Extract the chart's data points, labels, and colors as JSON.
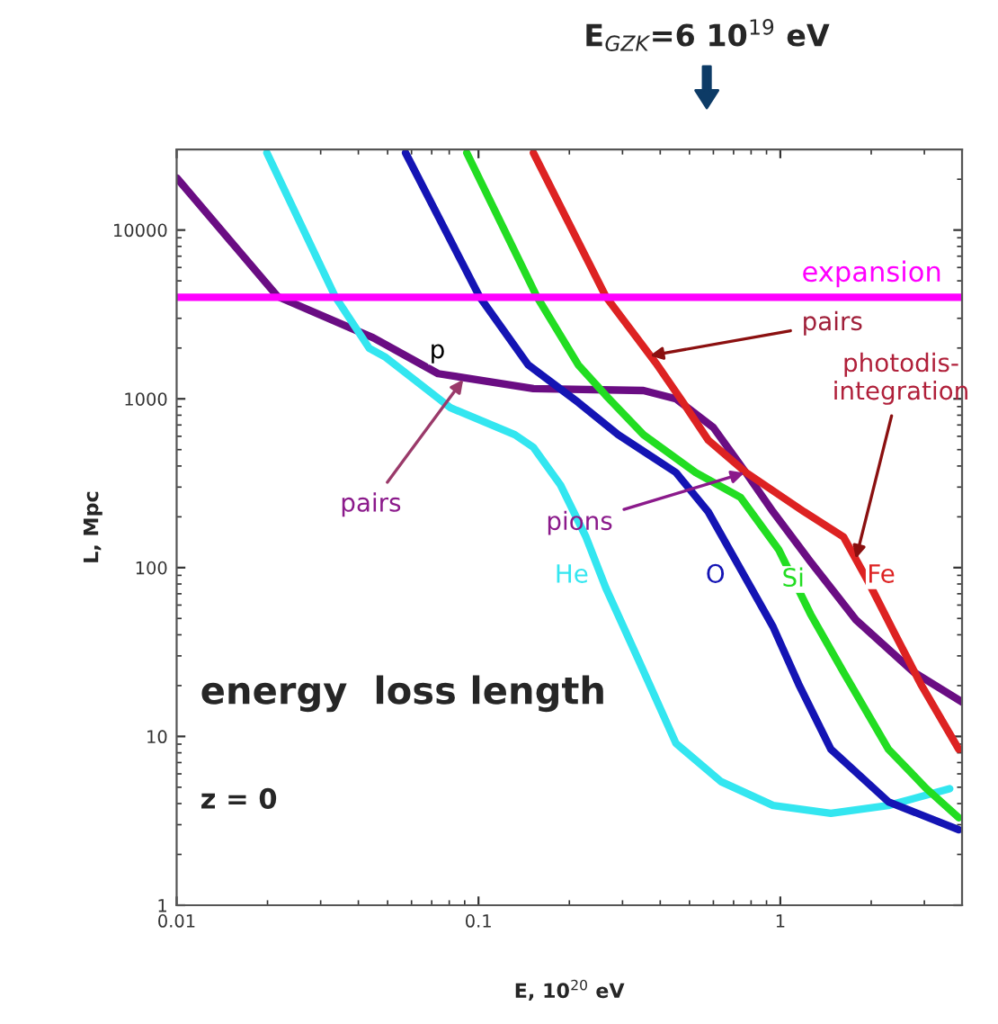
{
  "chart_data": {
    "type": "line",
    "xlabel": "E, 10$^{20}$ eV",
    "ylabel": "L, Mpc",
    "log": "xy",
    "xlim": [
      0.01,
      4
    ],
    "ylim": [
      1,
      30000
    ],
    "xticks": [
      0.01,
      0.1,
      1
    ],
    "yticks": [
      1,
      10,
      100,
      1000,
      10000
    ],
    "grid": false,
    "line_style": "solid",
    "marker": "none",
    "series": [
      {
        "name": "p",
        "color": "#6a0d83",
        "x": [
          0.01,
          0.0216,
          0.0448,
          0.0735,
          0.152,
          0.352,
          0.451,
          0.6,
          0.77,
          0.946,
          1.26,
          1.78,
          2.77,
          4
        ],
        "values": [
          20400,
          4040,
          2300,
          1410,
          1150,
          1120,
          1000,
          676,
          364,
          214,
          108,
          49,
          24,
          16
        ]
      },
      {
        "name": "He",
        "color": "#33e6f0",
        "x": [
          0.0199,
          0.0335,
          0.0435,
          0.0493,
          0.0808,
          0.132,
          0.152,
          0.187,
          0.227,
          0.264,
          0.338,
          0.451,
          0.636,
          0.946,
          1.47,
          2.28,
          3.64
        ],
        "values": [
          28700,
          4040,
          1990,
          1760,
          885,
          613,
          516,
          308,
          152,
          76,
          28.7,
          9.1,
          5.4,
          3.9,
          3.5,
          3.9,
          4.9
        ]
      },
      {
        "name": "O",
        "color": "#1414b4",
        "x": [
          0.0573,
          0.1007,
          0.146,
          0.214,
          0.29,
          0.451,
          0.577,
          0.739,
          0.946,
          1.15,
          1.47,
          2.28,
          3.9
        ],
        "values": [
          28700,
          4040,
          1590,
          953,
          613,
          366,
          214,
          97.6,
          44.6,
          20.4,
          8.4,
          4.1,
          2.8
        ]
      },
      {
        "name": "Si",
        "color": "#22dd22",
        "x": [
          0.0914,
          0.156,
          0.214,
          0.264,
          0.352,
          0.524,
          0.739,
          0.987,
          1.26,
          1.62,
          2.28,
          3.05,
          3.9
        ],
        "values": [
          28700,
          4040,
          1590,
          1050,
          613,
          366,
          260,
          128,
          52.9,
          24,
          8.4,
          4.9,
          3.3
        ]
      },
      {
        "name": "Fe",
        "color": "#dd2222",
        "x": [
          0.152,
          0.264,
          0.387,
          0.476,
          0.577,
          0.77,
          1.2,
          1.62,
          1.96,
          2.38,
          2.92,
          3.9
        ],
        "values": [
          28700,
          4040,
          1630,
          953,
          569,
          366,
          214,
          152,
          82,
          41.4,
          20.4,
          8.4
        ]
      }
    ],
    "ref_lines": [
      {
        "axis": "y",
        "value": 4000,
        "label": "expansion",
        "color": "#ff00ff",
        "line_style": "solid"
      }
    ],
    "annotations": [
      "E$_{GZK}$=6 10$^{19}$ eV",
      {
        "text": "pairs",
        "x": 0.089,
        "y": 1300
      },
      {
        "text": "pairs",
        "x": 0.37,
        "y": 1800
      },
      {
        "text": "pions",
        "x": 0.76,
        "y": 364
      },
      {
        "text": "photodis-\nintegration",
        "x": 1.78,
        "y": 113
      },
      "energy  loss length",
      "z = 0"
    ]
  }
}
